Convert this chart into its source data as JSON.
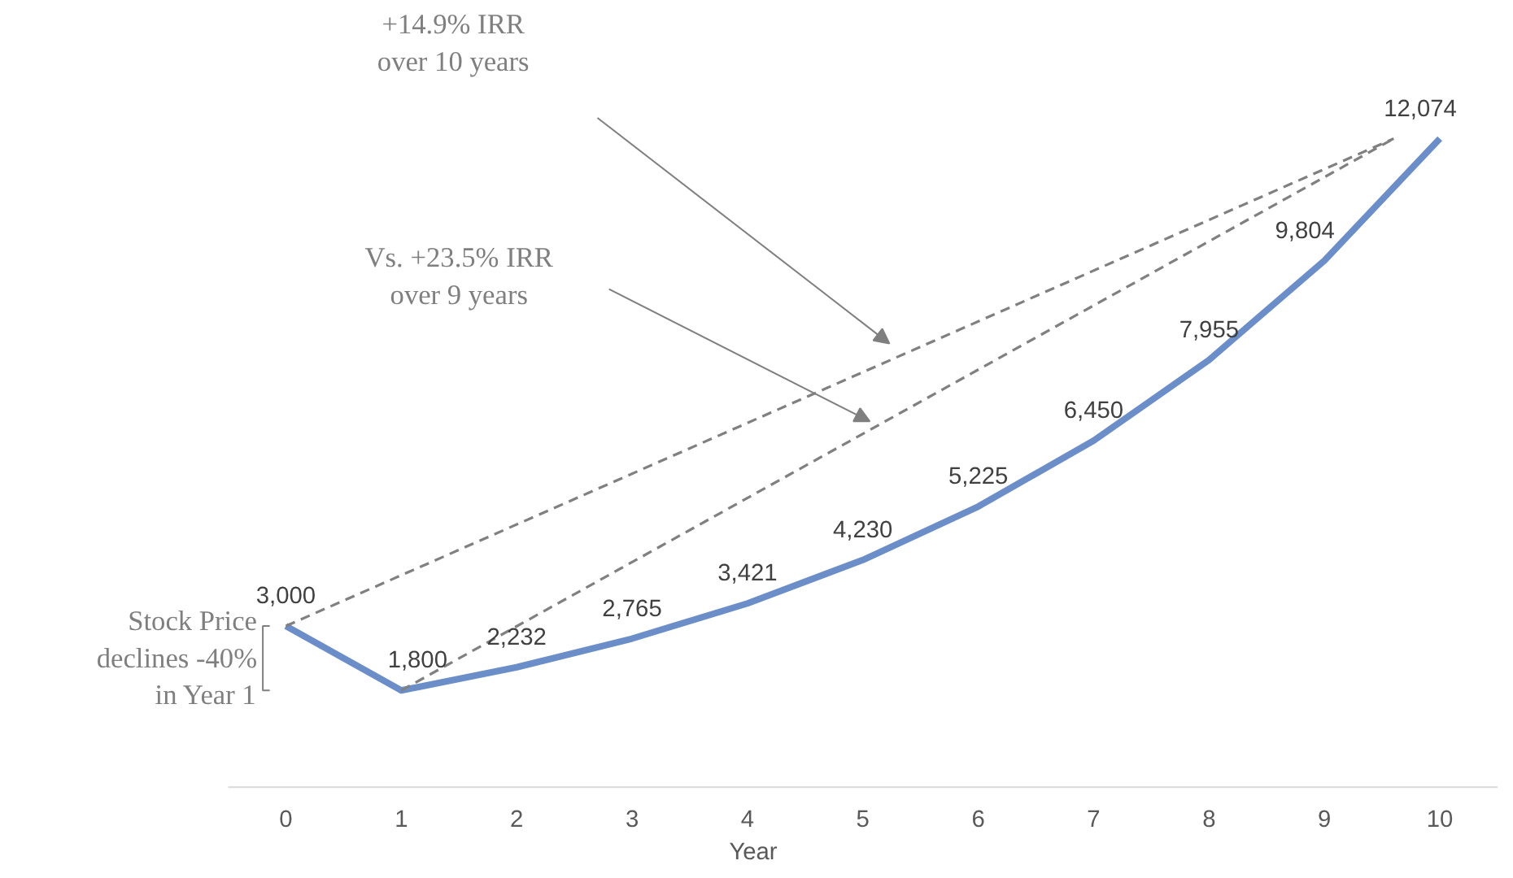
{
  "chart_data": {
    "type": "line",
    "xlabel": "Year",
    "x": [
      0,
      1,
      2,
      3,
      4,
      5,
      6,
      7,
      8,
      9,
      10
    ],
    "xlim": [
      -0.5,
      10.5
    ],
    "xticks": [
      0,
      1,
      2,
      3,
      4,
      5,
      6,
      7,
      8,
      9,
      10
    ],
    "series": [
      {
        "color": "#6b8ec8",
        "values": [
          3000,
          1800,
          2232,
          2765,
          3421,
          4230,
          5225,
          6450,
          7955,
          9804,
          12074
        ],
        "value_labels": [
          "3,000",
          "1,800",
          "2,232",
          "2,765",
          "3,421",
          "4,230",
          "5,225",
          "6,450",
          "7,955",
          "9,804",
          "12,074"
        ]
      },
      {
        "type": "line",
        "color": "#808080",
        "line_style": "dashed",
        "x": [
          0,
          9.6
        ],
        "values": [
          3000,
          12074
        ]
      },
      {
        "type": "line",
        "color": "#808080",
        "line_style": "dashed",
        "x": [
          1,
          9.6
        ],
        "values": [
          1800,
          12074
        ]
      }
    ],
    "grid": false,
    "marker": "none",
    "annotations": [
      "+14.9% IRR\nover 10 years",
      "Vs. +23.5% IRR\nover 9 years",
      "Stock Price\ndeclines -40%\nin Year 1"
    ]
  }
}
